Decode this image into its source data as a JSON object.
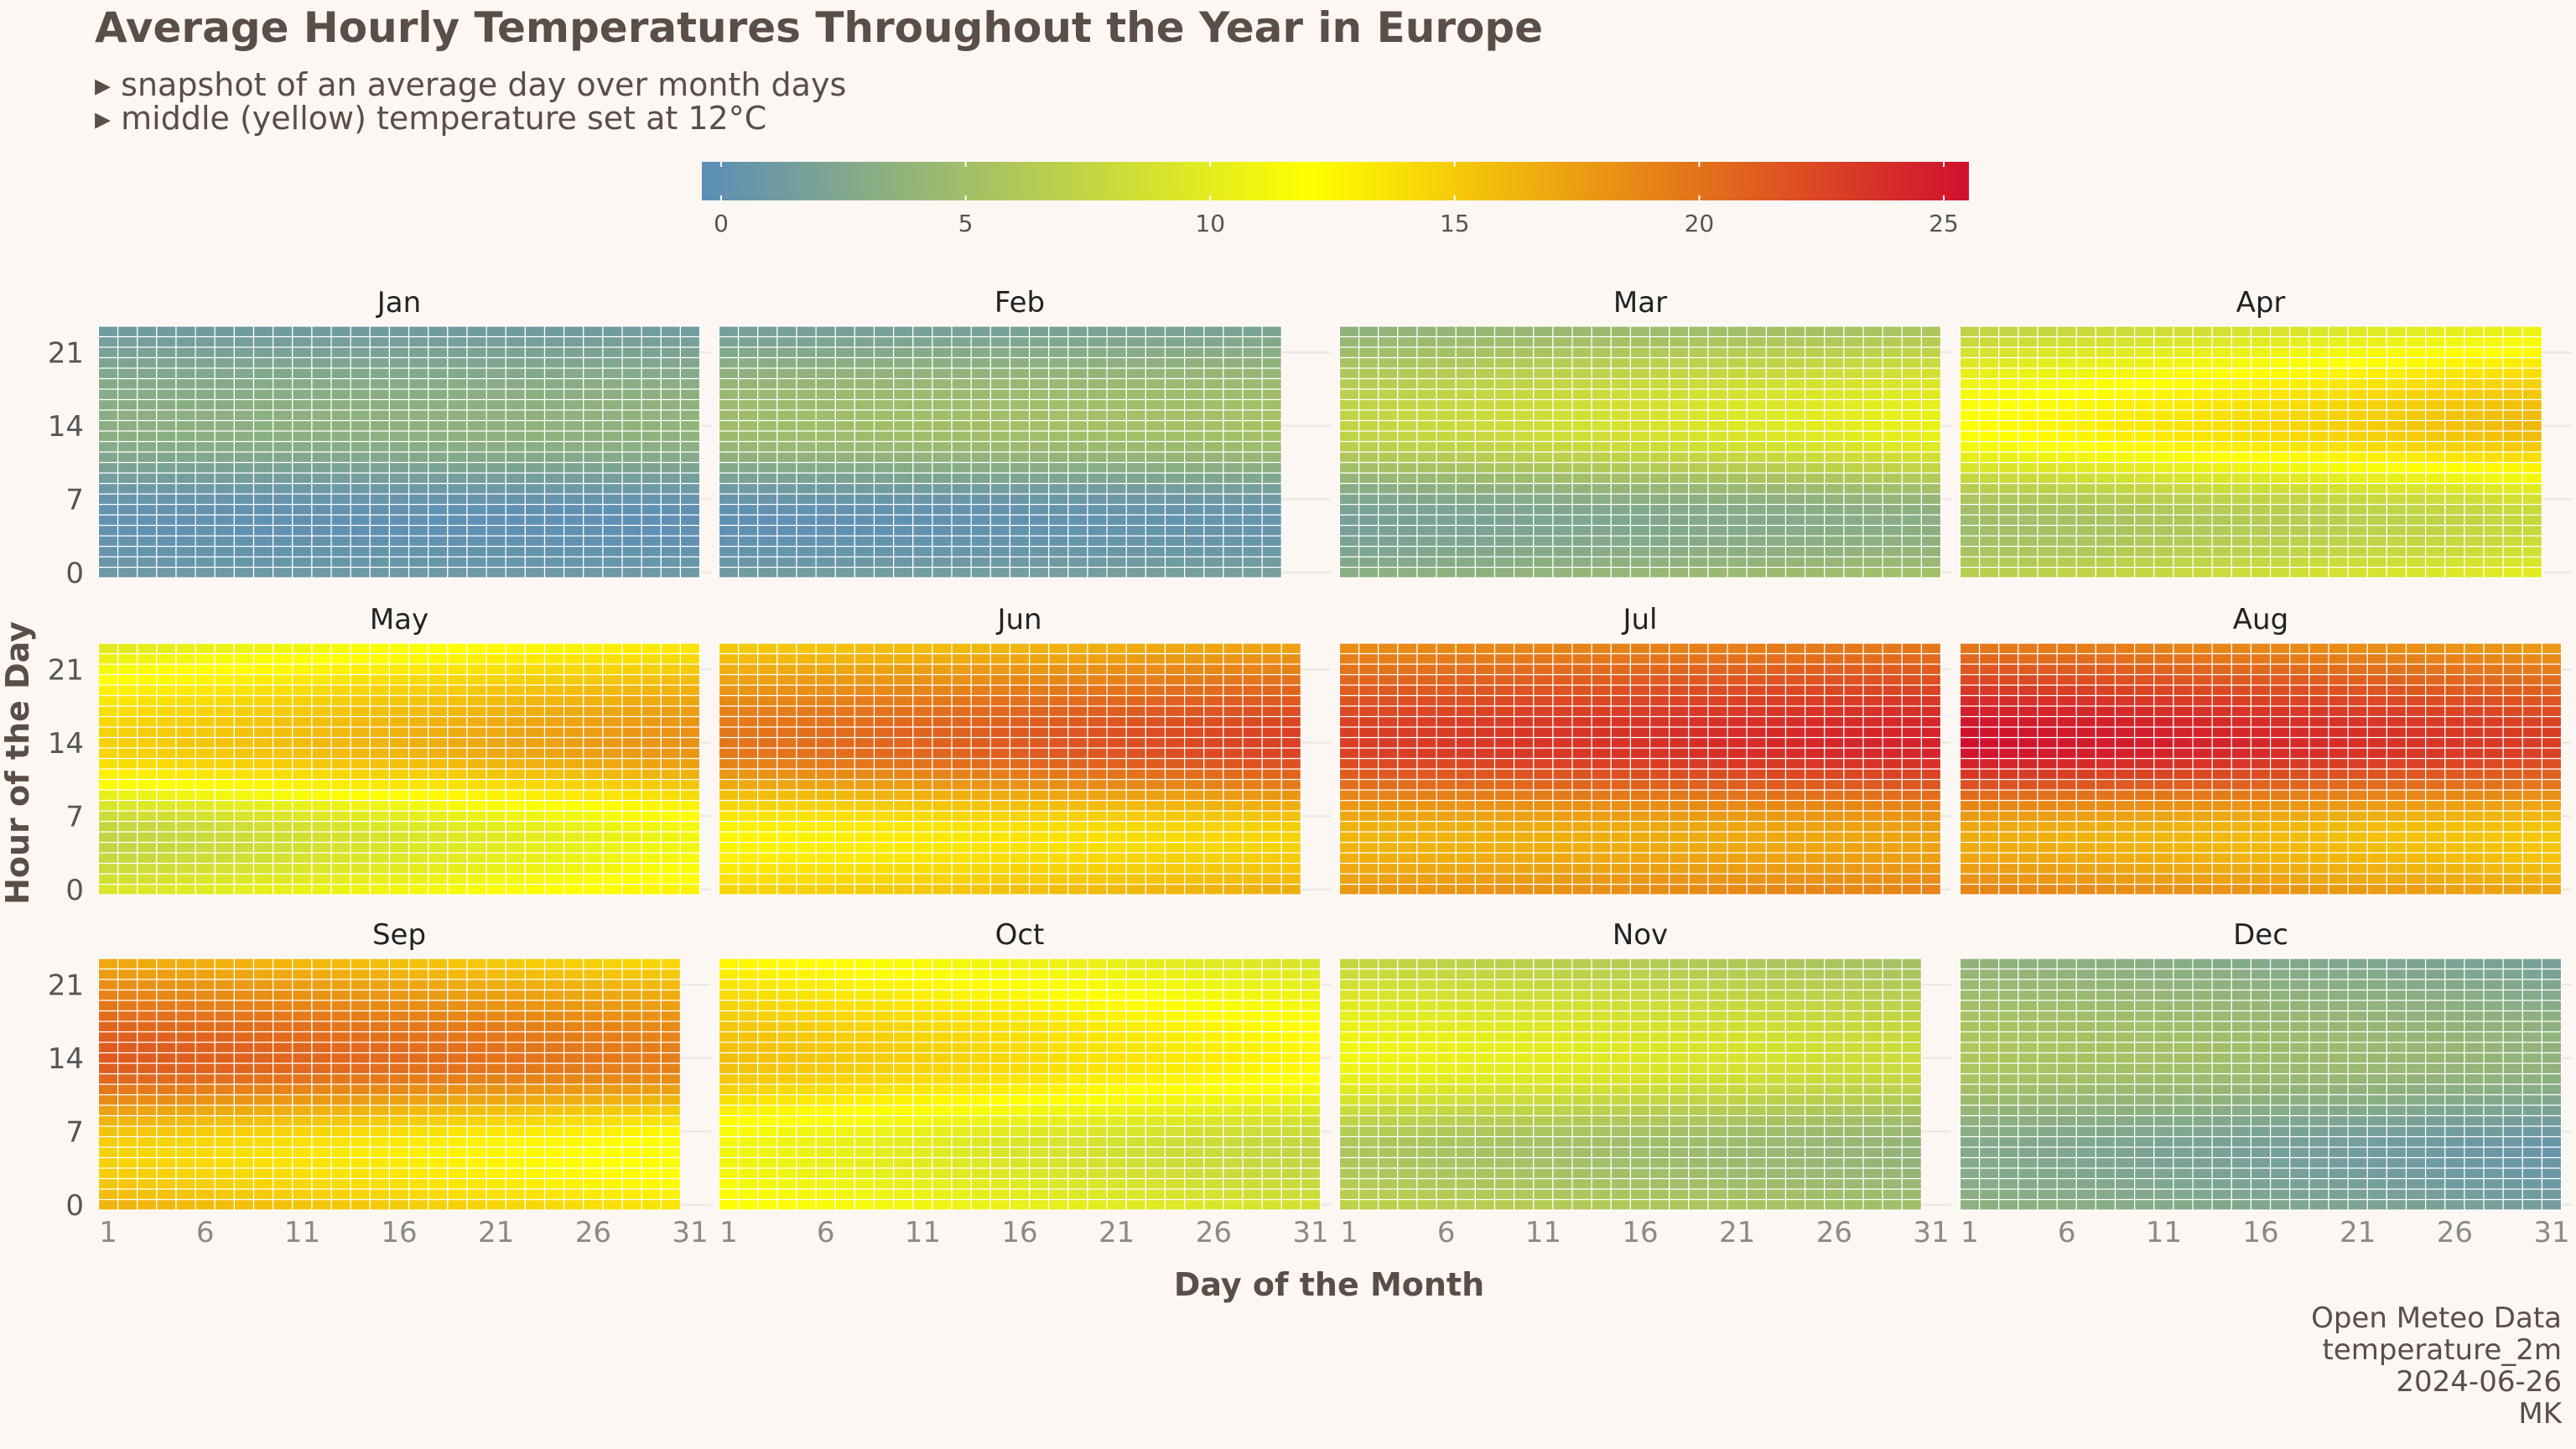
{
  "title": "Average Hourly Temperatures Throughout the Year in Europe",
  "subtitles": [
    "▸ snapshot of an average day over month days",
    "▸ middle (yellow) temperature set at 12°C"
  ],
  "caption": [
    "Open Meteo Data",
    "temperature_2m",
    "2024-06-26",
    "MK"
  ],
  "colors": {
    "background": "#fcf7f3",
    "scale": [
      "#5b8db8",
      "#ffff00",
      "#d0102e"
    ],
    "scale_midpoint": 12
  },
  "chart_data": {
    "type": "heatmap",
    "xlabel": "Day of the Month",
    "ylabel": "Hour of the Day",
    "x_ticks": [
      1,
      6,
      11,
      16,
      21,
      26,
      31
    ],
    "y_ticks": [
      0,
      7,
      14,
      21
    ],
    "colorbar": {
      "min": 0,
      "mid": 12,
      "max": 25,
      "ticks": [
        0,
        5,
        10,
        15,
        20,
        25
      ]
    },
    "facets": [
      {
        "month": "Jan",
        "days": 31,
        "tmin_start": 0.5,
        "tmin_end": 0.3,
        "tmax_start": 3.5,
        "tmax_end": 4.0
      },
      {
        "month": "Feb",
        "days": 29,
        "tmin_start": 0.3,
        "tmin_end": 0.8,
        "tmax_start": 5.0,
        "tmax_end": 5.5
      },
      {
        "month": "Mar",
        "days": 31,
        "tmin_start": 2.0,
        "tmin_end": 3.5,
        "tmax_start": 7.5,
        "tmax_end": 10.5
      },
      {
        "month": "Apr",
        "days": 30,
        "tmin_start": 5.0,
        "tmin_end": 8.0,
        "tmax_start": 12.0,
        "tmax_end": 16.0
      },
      {
        "month": "May",
        "days": 31,
        "tmin_start": 7.5,
        "tmin_end": 11.0,
        "tmax_start": 14.5,
        "tmax_end": 18.0
      },
      {
        "month": "Jun",
        "days": 30,
        "tmin_start": 12.5,
        "tmin_end": 14.5,
        "tmax_start": 19.5,
        "tmax_end": 22.5
      },
      {
        "month": "Jul",
        "days": 31,
        "tmin_start": 16.0,
        "tmin_end": 17.0,
        "tmax_start": 22.5,
        "tmax_end": 24.0
      },
      {
        "month": "Aug",
        "days": 31,
        "tmin_start": 16.5,
        "tmin_end": 15.0,
        "tmax_start": 25.0,
        "tmax_end": 22.5
      },
      {
        "month": "Sep",
        "days": 30,
        "tmin_start": 14.5,
        "tmin_end": 11.5,
        "tmax_start": 21.0,
        "tmax_end": 19.0
      },
      {
        "month": "Oct",
        "days": 31,
        "tmin_start": 11.0,
        "tmin_end": 7.5,
        "tmax_start": 15.5,
        "tmax_end": 12.5
      },
      {
        "month": "Nov",
        "days": 30,
        "tmin_start": 6.0,
        "tmin_end": 4.0,
        "tmax_start": 11.0,
        "tmax_end": 8.0
      },
      {
        "month": "Dec",
        "days": 31,
        "tmin_start": 3.0,
        "tmin_end": 1.0,
        "tmax_start": 6.0,
        "tmax_end": 4.0
      }
    ],
    "diurnal_shape": "minimum near hour 5, maximum near hour 14",
    "grid": true
  }
}
